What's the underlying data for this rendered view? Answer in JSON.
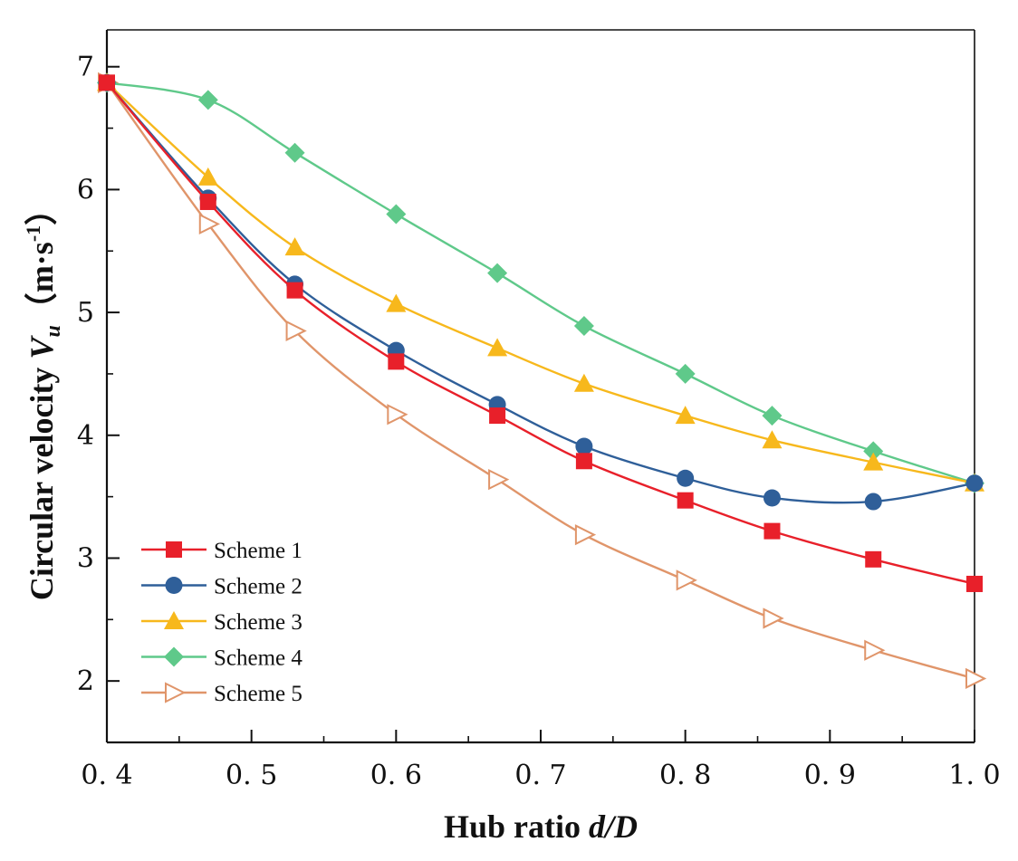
{
  "chart_data": {
    "type": "line",
    "xlabel": "Hub ratio d/D",
    "ylabel": "Circular velocity Vu（m·s-1）",
    "xlabel_parts": {
      "text": "Hub ratio ",
      "italic": "d/D"
    },
    "ylabel_parts": {
      "text": "Circular velocity ",
      "var": "V",
      "sub": "u",
      "unit_open": "（m·s",
      "unit_sup": "-1",
      "unit_close": "）"
    },
    "xlim": [
      0.4,
      1.0
    ],
    "ylim": [
      1.5,
      7.3
    ],
    "x_ticks": [
      0.4,
      0.5,
      0.6,
      0.7,
      0.8,
      0.9,
      1.0
    ],
    "x_tick_labels": [
      "0. 4",
      "0. 5",
      "0. 6",
      "0. 7",
      "0. 8",
      "0. 9",
      "1. 0"
    ],
    "y_ticks": [
      2,
      3,
      4,
      5,
      6,
      7
    ],
    "y_tick_labels": [
      "2",
      "3",
      "4",
      "5",
      "6",
      "7"
    ],
    "grid": false,
    "legend_position": "bottom-left",
    "x": [
      0.4,
      0.47,
      0.53,
      0.6,
      0.67,
      0.73,
      0.8,
      0.86,
      0.93,
      1.0
    ],
    "series": [
      {
        "name": "Scheme 1",
        "color": "#e8202a",
        "marker": "square",
        "values": [
          6.87,
          5.9,
          5.18,
          4.6,
          4.16,
          3.79,
          3.47,
          3.22,
          2.99,
          2.79
        ]
      },
      {
        "name": "Scheme 2",
        "color": "#2f5f99",
        "marker": "circle",
        "values": [
          6.87,
          5.93,
          5.23,
          4.69,
          4.25,
          3.91,
          3.65,
          3.49,
          3.46,
          3.61
        ]
      },
      {
        "name": "Scheme 3",
        "color": "#f7b81c",
        "marker": "triangle-up",
        "values": [
          6.87,
          6.1,
          5.53,
          5.07,
          4.71,
          4.42,
          4.16,
          3.96,
          3.78,
          3.61
        ]
      },
      {
        "name": "Scheme 4",
        "color": "#5fc98a",
        "marker": "diamond",
        "values": [
          6.87,
          6.73,
          6.3,
          5.8,
          5.32,
          4.89,
          4.5,
          4.16,
          3.87,
          3.61
        ]
      },
      {
        "name": "Scheme 5",
        "color": "#e0956a",
        "marker": "triangle-right-open",
        "values": [
          6.87,
          5.72,
          4.85,
          4.17,
          3.64,
          3.19,
          2.82,
          2.51,
          2.25,
          2.02
        ]
      }
    ]
  }
}
